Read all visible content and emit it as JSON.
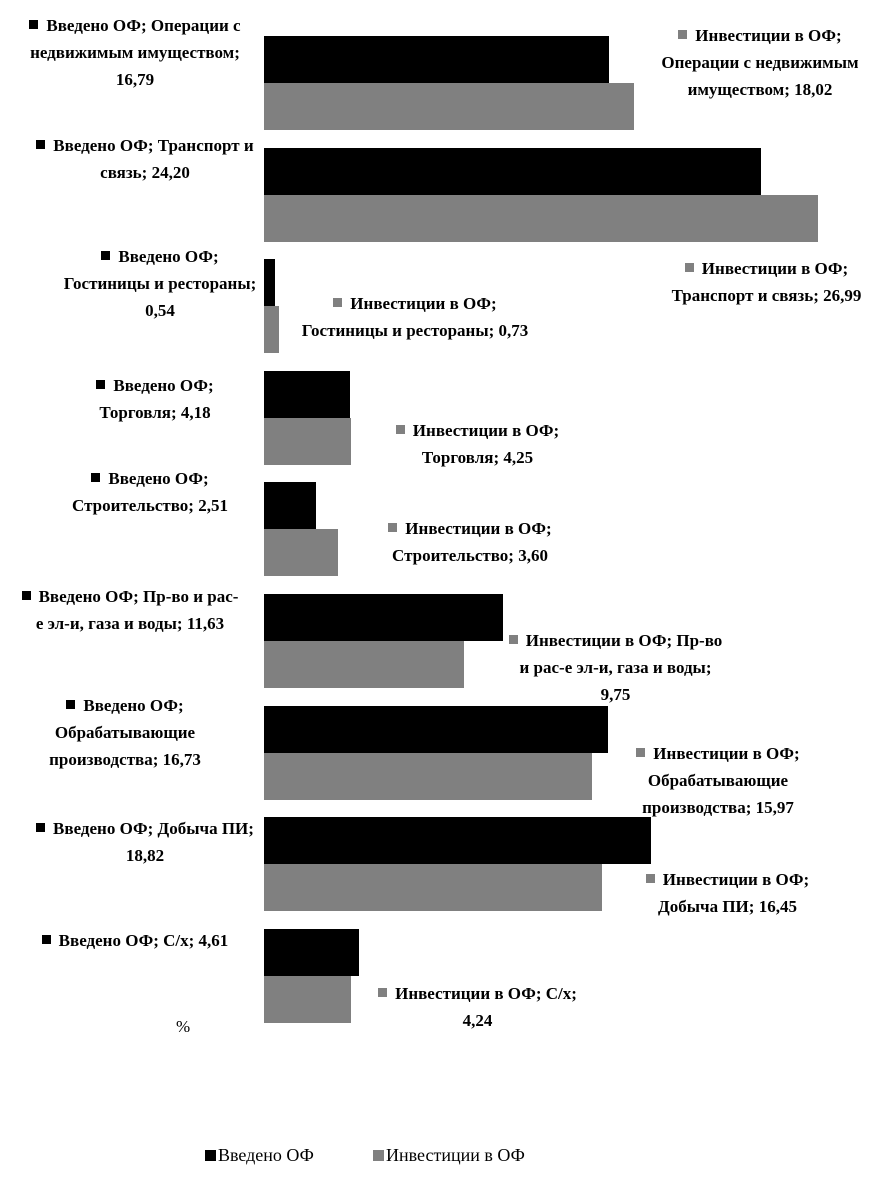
{
  "chart_data": {
    "type": "barh",
    "categories": [
      "Операции с недвижимым имуществом",
      "Транспорт и связь",
      "Гостиницы и рестораны",
      "Торговля",
      "Строительство",
      "Пр-во и рас-е эл-и, газа и воды",
      "Обрабатывающие производства",
      "Добыча ПИ",
      "С/х"
    ],
    "series": [
      {
        "name": "Введено ОФ",
        "color": "#000000",
        "values": [
          16.79,
          24.2,
          0.54,
          4.18,
          2.51,
          11.63,
          16.73,
          18.82,
          4.61
        ],
        "value_labels": [
          "Введено ОФ; Операции с недвижимым имуществом; 16,79",
          "Введено ОФ; Транспорт и связь; 24,20",
          "Введено ОФ; Гостиницы и рестораны; 0,54",
          "Введено ОФ; Торговля; 4,18",
          "Введено ОФ; Строительство; 2,51",
          "Введено ОФ; Пр-во и рас-е эл-и, газа и воды; 11,63",
          "Введено ОФ; Обрабатывающие производства; 16,73",
          "Введено ОФ; Добыча ПИ; 18,82",
          "Введено ОФ; С/х; 4,61"
        ]
      },
      {
        "name": "Инвестиции в ОФ",
        "color": "#808080",
        "values": [
          18.02,
          26.99,
          0.73,
          4.25,
          3.6,
          9.75,
          15.97,
          16.45,
          4.24
        ],
        "value_labels": [
          "Инвестиции в ОФ; Операции с недвижимым имуществом; 18,02",
          "Инвестиции в ОФ; Транспорт и связь; 26,99",
          "Инвестиции в ОФ; Гостиницы и рестораны; 0,73",
          "Инвестиции в ОФ; Торговля; 4,25",
          "Инвестиции в ОФ; Строительство; 3,60",
          "Инвестиции в ОФ; Пр-во и рас-е эл-и, газа и воды; 9,75",
          "Инвестиции в ОФ; Обрабатывающие производства; 15,97",
          "Инвестиции в ОФ; Добыча ПИ; 16,45",
          "Инвестиции в ОФ; С/х; 4,24"
        ]
      }
    ],
    "xlim": [
      0,
      27
    ],
    "x_label": "%",
    "legend": "bottom"
  }
}
